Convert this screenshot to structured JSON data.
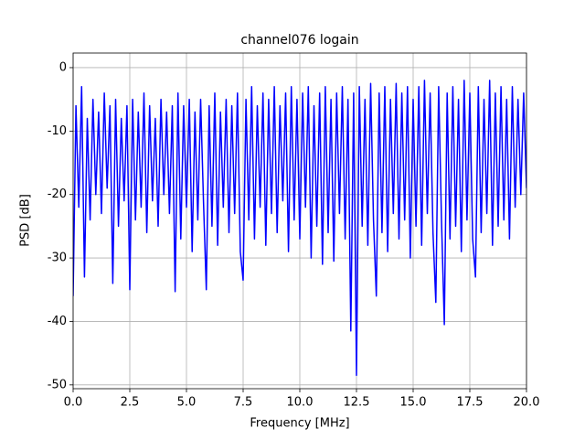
{
  "chart_data": {
    "type": "line",
    "title": "channel076 logain",
    "xlabel": "Frequency [MHz]",
    "ylabel": "PSD [dB]",
    "grid": true,
    "xlim": [
      0,
      20
    ],
    "ylim": [
      -50.6,
      2.3
    ],
    "xticks": [
      {
        "value": 0,
        "label": "0.0"
      },
      2.5,
      {
        "value": 5,
        "label": "5.0"
      },
      7.5,
      {
        "value": 10,
        "label": "10.0"
      },
      12.5,
      {
        "value": 15,
        "label": "15.0"
      },
      17.5,
      {
        "value": 20,
        "label": "20.0"
      }
    ],
    "yticks": [
      0,
      -10,
      -20,
      -30,
      -40,
      -50
    ],
    "x": [
      0,
      0.125,
      0.25,
      0.375,
      0.5,
      0.625,
      0.75,
      0.875,
      1,
      1.125,
      1.25,
      1.375,
      1.5,
      1.625,
      1.75,
      1.875,
      2,
      2.125,
      2.25,
      2.375,
      2.5,
      2.625,
      2.75,
      2.875,
      3,
      3.125,
      3.25,
      3.375,
      3.5,
      3.625,
      3.75,
      3.875,
      4,
      4.125,
      4.25,
      4.375,
      4.5,
      4.625,
      4.75,
      4.875,
      5,
      5.125,
      5.25,
      5.375,
      5.5,
      5.625,
      5.75,
      5.875,
      6,
      6.125,
      6.25,
      6.375,
      6.5,
      6.625,
      6.75,
      6.875,
      7,
      7.125,
      7.25,
      7.375,
      7.5,
      7.625,
      7.75,
      7.875,
      8,
      8.125,
      8.25,
      8.375,
      8.5,
      8.625,
      8.75,
      8.875,
      9,
      9.125,
      9.25,
      9.375,
      9.5,
      9.625,
      9.75,
      9.875,
      10,
      10.125,
      10.25,
      10.375,
      10.5,
      10.625,
      10.75,
      10.875,
      11,
      11.125,
      11.25,
      11.375,
      11.5,
      11.625,
      11.75,
      11.875,
      12,
      12.125,
      12.25,
      12.375,
      12.5,
      12.625,
      12.75,
      12.875,
      13,
      13.125,
      13.25,
      13.375,
      13.5,
      13.625,
      13.75,
      13.875,
      14,
      14.125,
      14.25,
      14.375,
      14.5,
      14.625,
      14.75,
      14.875,
      15,
      15.125,
      15.25,
      15.375,
      15.5,
      15.625,
      15.75,
      15.875,
      16,
      16.125,
      16.25,
      16.375,
      16.5,
      16.625,
      16.75,
      16.875,
      17,
      17.125,
      17.25,
      17.375,
      17.5,
      17.625,
      17.75,
      17.875,
      18,
      18.125,
      18.25,
      18.375,
      18.5,
      18.625,
      18.75,
      18.875,
      19,
      19.125,
      19.25,
      19.375,
      19.5,
      19.625,
      19.75,
      19.875,
      20
    ],
    "series": [
      {
        "color": "#0000ff",
        "values": [
          -36,
          -6,
          -22,
          -3,
          -33,
          -8,
          -24,
          -5,
          -20,
          -7,
          -23,
          -4,
          -19,
          -6,
          -34,
          -5,
          -25,
          -8,
          -21,
          -6,
          -35,
          -5,
          -24,
          -7,
          -22,
          -4,
          -26,
          -6,
          -21,
          -8,
          -25,
          -5,
          -20,
          -7,
          -23,
          -6,
          -35.3,
          -4,
          -27,
          -6,
          -22,
          -5,
          -29,
          -7,
          -24,
          -5,
          -21,
          -35,
          -6,
          -25,
          -4,
          -28,
          -7,
          -22,
          -5,
          -26,
          -6,
          -23,
          -4,
          -29,
          -33.5,
          -5,
          -24,
          -3,
          -27,
          -6,
          -22,
          -4,
          -28,
          -5,
          -23,
          -3,
          -26,
          -6,
          -21,
          -4,
          -29,
          -3,
          -24,
          -5,
          -27,
          -4,
          -22,
          -3,
          -30,
          -6,
          -25,
          -4,
          -31,
          -3,
          -26,
          -5,
          -30.5,
          -4,
          -23,
          -3,
          -27,
          -5,
          -41.5,
          -4,
          -48.5,
          -3,
          -25,
          -5,
          -28,
          -2.5,
          -24,
          -36,
          -4,
          -26,
          -3,
          -29,
          -5,
          -23,
          -2.5,
          -27,
          -4,
          -24,
          -3,
          -30,
          -5,
          -25,
          -3,
          -28,
          -2,
          -23,
          -4,
          -26,
          -37,
          -3,
          -24,
          -40.5,
          -4,
          -27,
          -3,
          -25,
          -5,
          -29,
          -2,
          -24,
          -4,
          -27,
          -33,
          -3,
          -26,
          -5,
          -23,
          -2,
          -28,
          -4,
          -25,
          -3,
          -24,
          -5,
          -27,
          -3,
          -22,
          -5,
          -20,
          -4,
          -19
        ]
      }
    ]
  }
}
